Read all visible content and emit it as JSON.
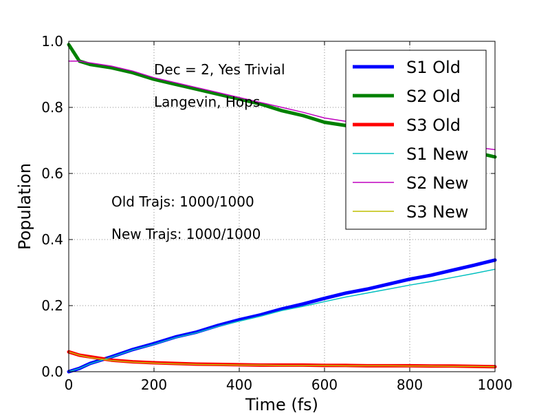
{
  "chart_data": {
    "type": "line",
    "xlabel": "Time (fs)",
    "ylabel": "Population",
    "xlim": [
      0,
      1000
    ],
    "ylim": [
      0,
      1.0
    ],
    "xticks": [
      "0",
      "200",
      "400",
      "600",
      "800",
      "1000"
    ],
    "yticks": [
      "0.0",
      "0.2",
      "0.4",
      "0.6",
      "0.8",
      "1.0"
    ],
    "grid": true,
    "legend_position": "top-right",
    "annotations": [
      {
        "text": "Dec = 2, Yes Trivial"
      },
      {
        "text": "Langevin, Hops"
      },
      {
        "text": "Old Trajs: 1000/1000"
      },
      {
        "text": "New Trajs: 1000/1000"
      }
    ],
    "x": [
      0,
      25,
      50,
      100,
      150,
      200,
      250,
      300,
      350,
      400,
      450,
      500,
      550,
      600,
      650,
      700,
      750,
      800,
      850,
      900,
      950,
      1000
    ],
    "series": [
      {
        "name": "S1 Old",
        "color": "#0000ff",
        "width": 5,
        "values": [
          0.0,
          0.01,
          0.025,
          0.045,
          0.067,
          0.085,
          0.105,
          0.12,
          0.14,
          0.157,
          0.172,
          0.19,
          0.205,
          0.222,
          0.238,
          0.25,
          0.265,
          0.28,
          0.292,
          0.307,
          0.322,
          0.338
        ]
      },
      {
        "name": "S2 Old",
        "color": "#008000",
        "width": 5,
        "values": [
          0.99,
          0.94,
          0.93,
          0.92,
          0.905,
          0.885,
          0.87,
          0.855,
          0.84,
          0.825,
          0.81,
          0.79,
          0.775,
          0.755,
          0.745,
          0.73,
          0.72,
          0.71,
          0.69,
          0.675,
          0.665,
          0.65
        ]
      },
      {
        "name": "S3 Old",
        "color": "#ff0000",
        "width": 5,
        "values": [
          0.06,
          0.05,
          0.045,
          0.035,
          0.03,
          0.027,
          0.025,
          0.023,
          0.022,
          0.021,
          0.02,
          0.02,
          0.02,
          0.019,
          0.019,
          0.018,
          0.018,
          0.018,
          0.017,
          0.017,
          0.016,
          0.015
        ]
      },
      {
        "name": "S1 New",
        "color": "#00bfbf",
        "width": 1.5,
        "values": [
          0.0,
          0.01,
          0.024,
          0.044,
          0.066,
          0.083,
          0.103,
          0.118,
          0.137,
          0.153,
          0.168,
          0.185,
          0.198,
          0.212,
          0.226,
          0.238,
          0.25,
          0.262,
          0.273,
          0.285,
          0.297,
          0.31
        ]
      },
      {
        "name": "S2 New",
        "color": "#bf00bf",
        "width": 1.5,
        "values": [
          0.94,
          0.94,
          0.935,
          0.925,
          0.91,
          0.89,
          0.875,
          0.86,
          0.845,
          0.83,
          0.815,
          0.8,
          0.785,
          0.768,
          0.758,
          0.745,
          0.732,
          0.72,
          0.705,
          0.69,
          0.68,
          0.672
        ]
      },
      {
        "name": "S3 New",
        "color": "#bfbf00",
        "width": 1.5,
        "values": [
          0.06,
          0.05,
          0.043,
          0.034,
          0.029,
          0.026,
          0.024,
          0.022,
          0.021,
          0.02,
          0.02,
          0.019,
          0.019,
          0.019,
          0.018,
          0.018,
          0.018,
          0.017,
          0.017,
          0.016,
          0.016,
          0.015
        ]
      }
    ]
  }
}
